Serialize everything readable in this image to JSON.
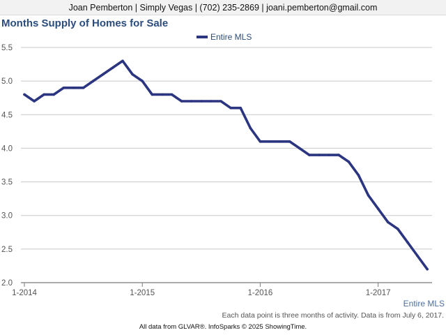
{
  "header": {
    "contact_line": "Joan Pemberton | Simply Vegas | (702) 235-2869 | joani.pemberton@gmail.com"
  },
  "chart_data": {
    "type": "line",
    "title": "Months Supply of Homes for Sale",
    "xlabel": "",
    "ylabel": "",
    "ylim": [
      2.0,
      5.5
    ],
    "yticks": [
      "2.0",
      "2.5",
      "3.0",
      "3.5",
      "4.0",
      "4.5",
      "5.0",
      "5.5"
    ],
    "xticks": [
      "1-2014",
      "1-2015",
      "1-2016",
      "1-2017"
    ],
    "x_start": "2014-01",
    "legend_position": "top-center",
    "grid": true,
    "series": [
      {
        "name": "Entire MLS",
        "color": "#2b3580",
        "x": [
          "2014-01",
          "2014-02",
          "2014-03",
          "2014-04",
          "2014-05",
          "2014-06",
          "2014-07",
          "2014-08",
          "2014-09",
          "2014-10",
          "2014-11",
          "2014-12",
          "2015-01",
          "2015-02",
          "2015-03",
          "2015-04",
          "2015-05",
          "2015-06",
          "2015-07",
          "2015-08",
          "2015-09",
          "2015-10",
          "2015-11",
          "2015-12",
          "2016-01",
          "2016-02",
          "2016-03",
          "2016-04",
          "2016-05",
          "2016-06",
          "2016-07",
          "2016-08",
          "2016-09",
          "2016-10",
          "2016-11",
          "2016-12",
          "2017-01",
          "2017-02",
          "2017-03",
          "2017-04",
          "2017-05",
          "2017-06"
        ],
        "values": [
          4.8,
          4.7,
          4.8,
          4.8,
          4.9,
          4.9,
          4.9,
          5.0,
          5.1,
          5.2,
          5.3,
          5.1,
          5.0,
          4.8,
          4.8,
          4.8,
          4.7,
          4.7,
          4.7,
          4.7,
          4.7,
          4.6,
          4.6,
          4.3,
          4.1,
          4.1,
          4.1,
          4.1,
          4.0,
          3.9,
          3.9,
          3.9,
          3.9,
          3.8,
          3.6,
          3.3,
          3.1,
          2.9,
          2.8,
          2.6,
          2.4,
          2.2
        ]
      }
    ]
  },
  "footer": {
    "series_label": "Entire MLS",
    "footnote": "Each data point is three months of activity. Data is from July 6, 2017.",
    "source": "All data from GLVAR®. InfoSparks © 2025 ShowingTime."
  }
}
